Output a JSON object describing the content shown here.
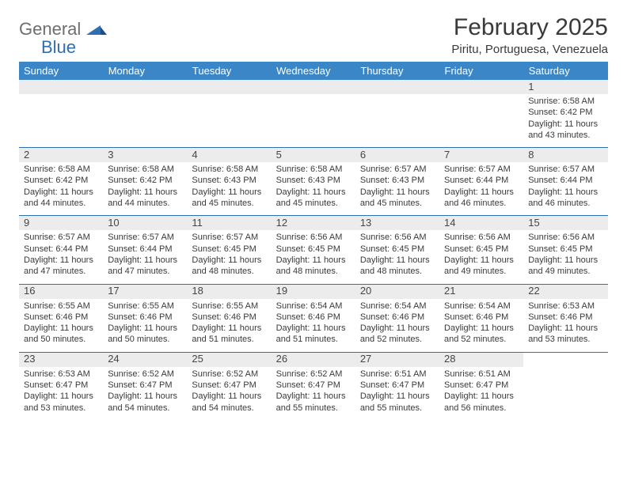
{
  "logo": {
    "gray": "General",
    "blue": "Blue"
  },
  "header": {
    "title": "February 2025",
    "location": "Piritu, Portuguesa, Venezuela"
  },
  "columns": [
    "Sunday",
    "Monday",
    "Tuesday",
    "Wednesday",
    "Thursday",
    "Friday",
    "Saturday"
  ],
  "styles": {
    "header_bg": "#3b86c7",
    "band_bg": "#ececec",
    "rule_color": "#2f6fb0",
    "text_color": "#3a3a3a",
    "title_fontsize": 30,
    "location_fontsize": 15,
    "body_fontsize": 11,
    "daynum_fontsize": 13
  },
  "weeks": [
    [
      {
        "day": "",
        "lines": []
      },
      {
        "day": "",
        "lines": []
      },
      {
        "day": "",
        "lines": []
      },
      {
        "day": "",
        "lines": []
      },
      {
        "day": "",
        "lines": []
      },
      {
        "day": "",
        "lines": []
      },
      {
        "day": "1",
        "lines": [
          "Sunrise: 6:58 AM",
          "Sunset: 6:42 PM",
          "Daylight: 11 hours and 43 minutes."
        ]
      }
    ],
    [
      {
        "day": "2",
        "lines": [
          "Sunrise: 6:58 AM",
          "Sunset: 6:42 PM",
          "Daylight: 11 hours and 44 minutes."
        ]
      },
      {
        "day": "3",
        "lines": [
          "Sunrise: 6:58 AM",
          "Sunset: 6:42 PM",
          "Daylight: 11 hours and 44 minutes."
        ]
      },
      {
        "day": "4",
        "lines": [
          "Sunrise: 6:58 AM",
          "Sunset: 6:43 PM",
          "Daylight: 11 hours and 45 minutes."
        ]
      },
      {
        "day": "5",
        "lines": [
          "Sunrise: 6:58 AM",
          "Sunset: 6:43 PM",
          "Daylight: 11 hours and 45 minutes."
        ]
      },
      {
        "day": "6",
        "lines": [
          "Sunrise: 6:57 AM",
          "Sunset: 6:43 PM",
          "Daylight: 11 hours and 45 minutes."
        ]
      },
      {
        "day": "7",
        "lines": [
          "Sunrise: 6:57 AM",
          "Sunset: 6:44 PM",
          "Daylight: 11 hours and 46 minutes."
        ]
      },
      {
        "day": "8",
        "lines": [
          "Sunrise: 6:57 AM",
          "Sunset: 6:44 PM",
          "Daylight: 11 hours and 46 minutes."
        ]
      }
    ],
    [
      {
        "day": "9",
        "lines": [
          "Sunrise: 6:57 AM",
          "Sunset: 6:44 PM",
          "Daylight: 11 hours and 47 minutes."
        ]
      },
      {
        "day": "10",
        "lines": [
          "Sunrise: 6:57 AM",
          "Sunset: 6:44 PM",
          "Daylight: 11 hours and 47 minutes."
        ]
      },
      {
        "day": "11",
        "lines": [
          "Sunrise: 6:57 AM",
          "Sunset: 6:45 PM",
          "Daylight: 11 hours and 48 minutes."
        ]
      },
      {
        "day": "12",
        "lines": [
          "Sunrise: 6:56 AM",
          "Sunset: 6:45 PM",
          "Daylight: 11 hours and 48 minutes."
        ]
      },
      {
        "day": "13",
        "lines": [
          "Sunrise: 6:56 AM",
          "Sunset: 6:45 PM",
          "Daylight: 11 hours and 48 minutes."
        ]
      },
      {
        "day": "14",
        "lines": [
          "Sunrise: 6:56 AM",
          "Sunset: 6:45 PM",
          "Daylight: 11 hours and 49 minutes."
        ]
      },
      {
        "day": "15",
        "lines": [
          "Sunrise: 6:56 AM",
          "Sunset: 6:45 PM",
          "Daylight: 11 hours and 49 minutes."
        ]
      }
    ],
    [
      {
        "day": "16",
        "lines": [
          "Sunrise: 6:55 AM",
          "Sunset: 6:46 PM",
          "Daylight: 11 hours and 50 minutes."
        ]
      },
      {
        "day": "17",
        "lines": [
          "Sunrise: 6:55 AM",
          "Sunset: 6:46 PM",
          "Daylight: 11 hours and 50 minutes."
        ]
      },
      {
        "day": "18",
        "lines": [
          "Sunrise: 6:55 AM",
          "Sunset: 6:46 PM",
          "Daylight: 11 hours and 51 minutes."
        ]
      },
      {
        "day": "19",
        "lines": [
          "Sunrise: 6:54 AM",
          "Sunset: 6:46 PM",
          "Daylight: 11 hours and 51 minutes."
        ]
      },
      {
        "day": "20",
        "lines": [
          "Sunrise: 6:54 AM",
          "Sunset: 6:46 PM",
          "Daylight: 11 hours and 52 minutes."
        ]
      },
      {
        "day": "21",
        "lines": [
          "Sunrise: 6:54 AM",
          "Sunset: 6:46 PM",
          "Daylight: 11 hours and 52 minutes."
        ]
      },
      {
        "day": "22",
        "lines": [
          "Sunrise: 6:53 AM",
          "Sunset: 6:46 PM",
          "Daylight: 11 hours and 53 minutes."
        ]
      }
    ],
    [
      {
        "day": "23",
        "lines": [
          "Sunrise: 6:53 AM",
          "Sunset: 6:47 PM",
          "Daylight: 11 hours and 53 minutes."
        ]
      },
      {
        "day": "24",
        "lines": [
          "Sunrise: 6:52 AM",
          "Sunset: 6:47 PM",
          "Daylight: 11 hours and 54 minutes."
        ]
      },
      {
        "day": "25",
        "lines": [
          "Sunrise: 6:52 AM",
          "Sunset: 6:47 PM",
          "Daylight: 11 hours and 54 minutes."
        ]
      },
      {
        "day": "26",
        "lines": [
          "Sunrise: 6:52 AM",
          "Sunset: 6:47 PM",
          "Daylight: 11 hours and 55 minutes."
        ]
      },
      {
        "day": "27",
        "lines": [
          "Sunrise: 6:51 AM",
          "Sunset: 6:47 PM",
          "Daylight: 11 hours and 55 minutes."
        ]
      },
      {
        "day": "28",
        "lines": [
          "Sunrise: 6:51 AM",
          "Sunset: 6:47 PM",
          "Daylight: 11 hours and 56 minutes."
        ]
      },
      {
        "day": "",
        "lines": []
      }
    ]
  ]
}
